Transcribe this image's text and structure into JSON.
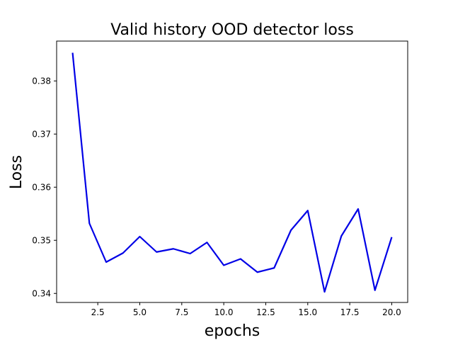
{
  "chart_data": {
    "type": "line",
    "title": "Valid history OOD detector loss",
    "xlabel": "epochs",
    "ylabel": "Loss",
    "xlim": [
      0.05,
      20.95
    ],
    "ylim": [
      0.3383,
      0.3875
    ],
    "xticks": [
      2.5,
      5.0,
      7.5,
      10.0,
      12.5,
      15.0,
      17.5,
      20.0
    ],
    "xtick_labels": [
      "2.5",
      "5.0",
      "7.5",
      "10.0",
      "12.5",
      "15.0",
      "17.5",
      "20.0"
    ],
    "yticks": [
      0.34,
      0.35,
      0.36,
      0.37,
      0.38
    ],
    "ytick_labels": [
      "0.34",
      "0.35",
      "0.36",
      "0.37",
      "0.38"
    ],
    "grid": false,
    "series": [
      {
        "color": "#0000e6",
        "x": [
          1,
          2,
          3,
          4,
          5,
          6,
          7,
          8,
          9,
          10,
          11,
          12,
          13,
          14,
          15,
          16,
          17,
          18,
          19,
          20
        ],
        "y": [
          0.3853,
          0.3532,
          0.3459,
          0.3476,
          0.3507,
          0.3478,
          0.3484,
          0.3475,
          0.3496,
          0.3453,
          0.3465,
          0.344,
          0.3448,
          0.3519,
          0.3556,
          0.3403,
          0.3508,
          0.3559,
          0.3406,
          0.3506
        ]
      }
    ]
  }
}
